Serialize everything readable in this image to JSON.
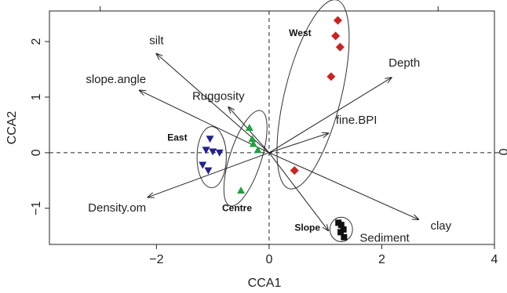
{
  "chart_data": {
    "type": "scatter",
    "title": "",
    "xlabel": "CCA1",
    "ylabel": "CCA2",
    "right_tick_label": "0",
    "xlim": [
      -3.9,
      4.0
    ],
    "ylim": [
      -1.65,
      2.55
    ],
    "x_ticks": [
      -2,
      0,
      2,
      4
    ],
    "x_tick_labels": [
      "−2",
      "0",
      "2",
      "4"
    ],
    "y_ticks": [
      -1,
      0,
      1,
      2
    ],
    "y_tick_labels": [
      "−1",
      "0",
      "1",
      "2"
    ],
    "top_ticks": [
      -3,
      3
    ],
    "zero_lines": true,
    "grid": false,
    "legend": "none",
    "groups": [
      {
        "name": "West",
        "marker": "diamond",
        "color": "#cc2222",
        "points": [
          [
            1.22,
            2.38
          ],
          [
            1.18,
            2.1
          ],
          [
            1.26,
            1.9
          ],
          [
            1.1,
            1.37
          ],
          [
            0.45,
            -0.32
          ]
        ],
        "ellipse": {
          "cx": 0.78,
          "cy": 1.05,
          "rx": 0.5,
          "ry": 1.75,
          "angle": 14
        }
      },
      {
        "name": "East",
        "marker": "triangle-down",
        "color": "#22228a",
        "points": [
          [
            -1.05,
            0.25
          ],
          [
            -1.12,
            0.05
          ],
          [
            -1.0,
            0.02
          ],
          [
            -0.88,
            0.0
          ],
          [
            -1.18,
            -0.22
          ],
          [
            -1.08,
            -0.32
          ]
        ],
        "ellipse": {
          "cx": -1.02,
          "cy": -0.08,
          "rx": 0.26,
          "ry": 0.55,
          "angle": 0
        }
      },
      {
        "name": "Centre",
        "marker": "triangle-up",
        "color": "#22a040",
        "points": [
          [
            -0.35,
            0.45
          ],
          [
            -0.3,
            0.25
          ],
          [
            -0.28,
            0.16
          ],
          [
            -0.2,
            0.05
          ],
          [
            -0.5,
            -0.68
          ]
        ],
        "ellipse": {
          "cx": -0.42,
          "cy": -0.1,
          "rx": 0.28,
          "ry": 0.9,
          "angle": 18
        }
      },
      {
        "name": "Slope",
        "marker": "square",
        "color": "#111111",
        "points": [
          [
            1.23,
            -1.26
          ],
          [
            1.28,
            -1.3
          ],
          [
            1.32,
            -1.38
          ],
          [
            1.27,
            -1.43
          ],
          [
            1.33,
            -1.52
          ]
        ],
        "ellipse": {
          "cx": 1.28,
          "cy": -1.38,
          "rx": 0.2,
          "ry": 0.22,
          "angle": 0
        }
      }
    ],
    "arrows": [
      {
        "name": "silt",
        "x": -2.0,
        "y": 1.78
      },
      {
        "name": "slope.angle",
        "x": -2.3,
        "y": 1.12
      },
      {
        "name": "Ruggosity",
        "x": -0.72,
        "y": 0.82
      },
      {
        "name": "Depth",
        "x": 2.17,
        "y": 1.35
      },
      {
        "name": "fine.BPI",
        "x": 1.05,
        "y": 0.35
      },
      {
        "name": "Density.om",
        "x": -2.15,
        "y": -0.8
      },
      {
        "name": "clay",
        "x": 2.65,
        "y": -1.2
      },
      {
        "name": "Sediment",
        "x": 1.05,
        "y": -1.4
      }
    ]
  }
}
